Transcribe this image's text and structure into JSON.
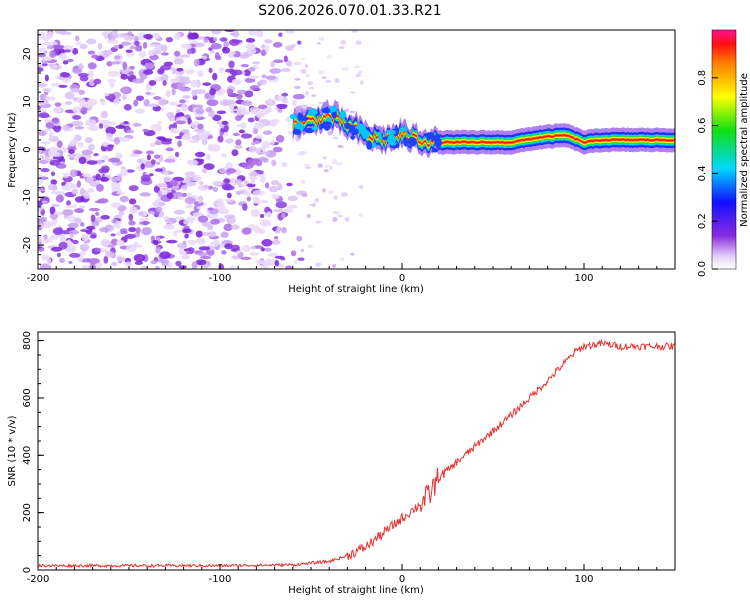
{
  "title": "S206.2026.070.01.33.R21",
  "chart_data": [
    {
      "type": "heatmap",
      "xlabel": "Height of straight line (km)",
      "ylabel": "Frequency (Hz)",
      "xlim": [
        -200,
        150
      ],
      "ylim": [
        -25,
        25
      ],
      "xticks": [
        "-200",
        "-100",
        "0",
        "100"
      ],
      "yticks": [
        "-20",
        "-10",
        "0",
        "10",
        "20"
      ],
      "colorbar": {
        "label": "Normalized spectral amplitude",
        "ticks": [
          "0.0",
          "0.2",
          "0.4",
          "0.6",
          "0.8"
        ],
        "range": [
          0,
          1
        ]
      },
      "trace": [
        {
          "x": -60,
          "y": 5
        },
        {
          "x": -50,
          "y": 6
        },
        {
          "x": -40,
          "y": 7
        },
        {
          "x": -30,
          "y": 5
        },
        {
          "x": -20,
          "y": 3
        },
        {
          "x": -10,
          "y": 2
        },
        {
          "x": 0,
          "y": 3
        },
        {
          "x": 10,
          "y": 2
        },
        {
          "x": 20,
          "y": 1.5
        },
        {
          "x": 40,
          "y": 1.5
        },
        {
          "x": 60,
          "y": 1.5
        },
        {
          "x": 75,
          "y": 2.5
        },
        {
          "x": 90,
          "y": 3
        },
        {
          "x": 100,
          "y": 1.5
        },
        {
          "x": 110,
          "y": 2
        },
        {
          "x": 120,
          "y": 2
        },
        {
          "x": 150,
          "y": 2
        }
      ]
    },
    {
      "type": "line",
      "xlabel": "Height of straight line (km)",
      "ylabel": "SNR (10 * v/v)",
      "xlim": [
        -200,
        150
      ],
      "ylim": [
        0,
        830
      ],
      "xticks": [
        "-200",
        "-100",
        "0",
        "100"
      ],
      "yticks": [
        "0",
        "200",
        "400",
        "600",
        "800"
      ],
      "series": [
        {
          "color": "#e83030",
          "x": [
            -200,
            -150,
            -100,
            -60,
            -40,
            -30,
            -20,
            -10,
            0,
            10,
            15,
            20,
            40,
            60,
            80,
            95,
            100,
            110,
            120,
            150
          ],
          "y": [
            15,
            15,
            15,
            18,
            30,
            50,
            80,
            130,
            180,
            230,
            260,
            320,
            430,
            540,
            660,
            760,
            780,
            790,
            780,
            780
          ]
        }
      ]
    }
  ]
}
